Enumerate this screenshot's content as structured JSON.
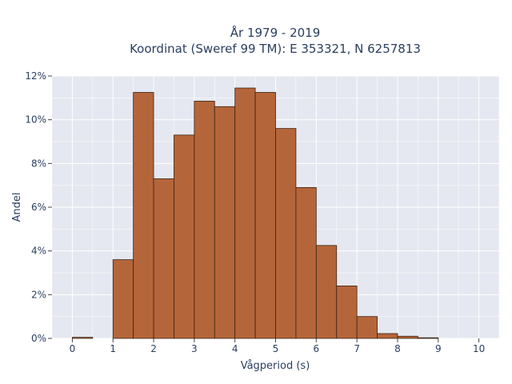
{
  "chart_data": {
    "type": "bar",
    "title_lines": [
      "År 1979 - 2019",
      "Koordinat (Sweref 99 TM): E 353321, N 6257813"
    ],
    "xlabel": "Vågperiod (s)",
    "ylabel": "Andel",
    "xlim": [
      -0.5,
      10.5
    ],
    "ylim": [
      0,
      12
    ],
    "x_ticks": [
      0,
      1,
      2,
      3,
      4,
      5,
      6,
      7,
      8,
      9,
      10
    ],
    "y_ticks": [
      0,
      2,
      4,
      6,
      8,
      10,
      12
    ],
    "y_tick_labels": [
      "0%",
      "2%",
      "4%",
      "6%",
      "8%",
      "10%",
      "12%"
    ],
    "bin_width": 0.5,
    "bins": [
      {
        "start": 0.0,
        "value": 0.05
      },
      {
        "start": 1.0,
        "value": 3.6
      },
      {
        "start": 1.5,
        "value": 11.25
      },
      {
        "start": 2.0,
        "value": 7.3
      },
      {
        "start": 2.5,
        "value": 9.3
      },
      {
        "start": 3.0,
        "value": 10.85
      },
      {
        "start": 3.5,
        "value": 10.6
      },
      {
        "start": 4.0,
        "value": 11.45
      },
      {
        "start": 4.5,
        "value": 11.25
      },
      {
        "start": 5.0,
        "value": 9.6
      },
      {
        "start": 5.5,
        "value": 6.9
      },
      {
        "start": 6.0,
        "value": 4.25
      },
      {
        "start": 6.5,
        "value": 2.4
      },
      {
        "start": 7.0,
        "value": 1.0
      },
      {
        "start": 7.5,
        "value": 0.22
      },
      {
        "start": 8.0,
        "value": 0.1
      },
      {
        "start": 8.5,
        "value": 0.03
      }
    ],
    "bar_color": "#b5653a",
    "bar_edge_color": "#3b2414",
    "plot_bg": "#e5e8f0",
    "grid_color": "#ffffff",
    "grid": true
  }
}
